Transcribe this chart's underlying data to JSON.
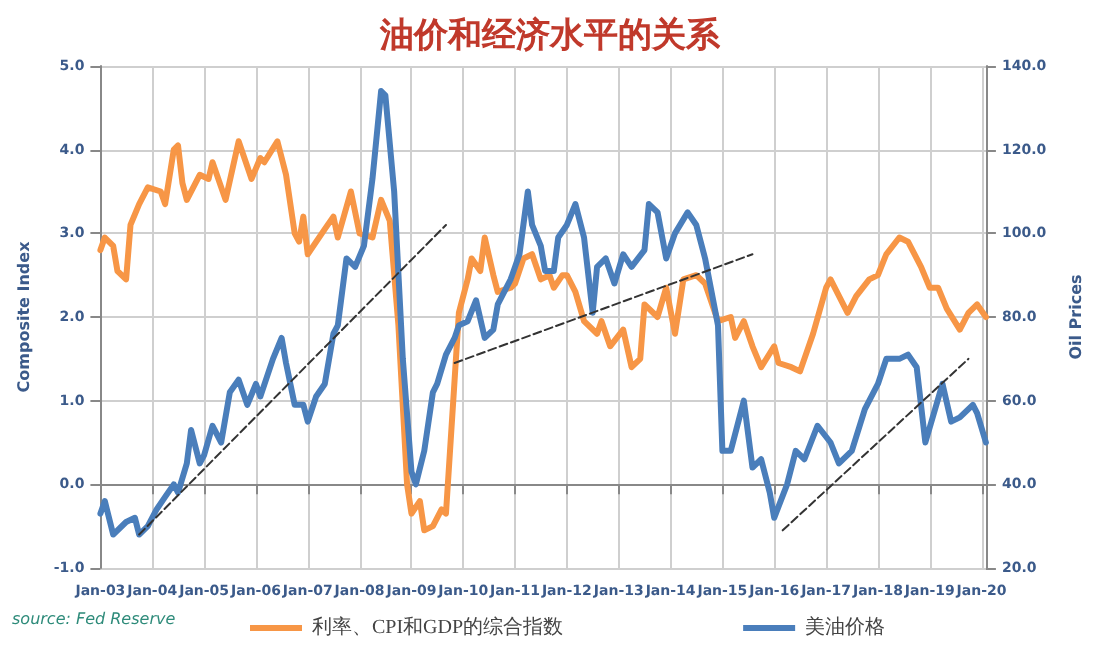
{
  "chart_data": {
    "type": "line",
    "title": "油价和经济水平的关系",
    "ylabel": "Composite Index",
    "y2label": "Oil Prices",
    "annotations": [
      "source: Fed Reserve"
    ],
    "xlim": [
      "2003-01",
      "2020-02"
    ],
    "xticks": [
      {
        "value": "2003-01",
        "label": "Jan-03"
      },
      {
        "value": "2004-01",
        "label": "Jan-04"
      },
      {
        "value": "2005-01",
        "label": "Jan-05"
      },
      {
        "value": "2006-01",
        "label": "Jan-06"
      },
      {
        "value": "2007-01",
        "label": "Jan-07"
      },
      {
        "value": "2008-01",
        "label": "Jan-08"
      },
      {
        "value": "2009-01",
        "label": "Jan-09"
      },
      {
        "value": "2010-01",
        "label": "Jan-10"
      },
      {
        "value": "2011-01",
        "label": "Jan-11"
      },
      {
        "value": "2012-01",
        "label": "Jan-12"
      },
      {
        "value": "2013-01",
        "label": "Jan-13"
      },
      {
        "value": "2014-01",
        "label": "Jan-14"
      },
      {
        "value": "2015-01",
        "label": "Jan-15"
      },
      {
        "value": "2016-01",
        "label": "Jan-16"
      },
      {
        "value": "2017-01",
        "label": "Jan-17"
      },
      {
        "value": "2018-01",
        "label": "Jan-18"
      },
      {
        "value": "2019-01",
        "label": "Jan-19"
      },
      {
        "value": "2020-01",
        "label": "Jan-20"
      }
    ],
    "ylim": [
      -1,
      5
    ],
    "yticks": [
      {
        "value": -1,
        "label": "-1.0"
      },
      {
        "value": 0,
        "label": "0.0"
      },
      {
        "value": 1,
        "label": "1.0"
      },
      {
        "value": 2,
        "label": "2.0"
      },
      {
        "value": 3,
        "label": "3.0"
      },
      {
        "value": 4,
        "label": "4.0"
      },
      {
        "value": 5,
        "label": "5.0"
      }
    ],
    "y2lim": [
      20,
      140
    ],
    "y2ticks": [
      {
        "value": 20,
        "label": "20.0"
      },
      {
        "value": 40,
        "label": "40.0"
      },
      {
        "value": 60,
        "label": "60.0"
      },
      {
        "value": 80,
        "label": "80.0"
      },
      {
        "value": 100,
        "label": "100.0"
      },
      {
        "value": 120,
        "label": "120.0"
      },
      {
        "value": 140,
        "label": "140.0"
      }
    ],
    "grid": true,
    "legend": "bottom",
    "marker": "none",
    "line_style": "solid",
    "series": [
      {
        "name": "利率、CPI和GDP的综合指数",
        "color": "#f79646",
        "x": [
          "2003-01",
          "2003-02",
          "2003-04",
          "2003-05",
          "2003-07",
          "2003-08",
          "2003-10",
          "2003-12",
          "2004-03",
          "2004-04",
          "2004-06",
          "2004-07",
          "2004-08",
          "2004-09",
          "2004-12",
          "2005-02",
          "2005-03",
          "2005-06",
          "2005-09",
          "2005-11",
          "2005-12",
          "2006-02",
          "2006-03",
          "2006-06",
          "2006-08",
          "2006-10",
          "2006-11",
          "2006-12",
          "2007-01",
          "2007-05",
          "2007-07",
          "2007-08",
          "2007-11",
          "2008-01",
          "2008-04",
          "2008-06",
          "2008-08",
          "2008-10",
          "2008-12",
          "2009-01",
          "2009-03",
          "2009-04",
          "2009-06",
          "2009-08",
          "2009-09",
          "2009-11",
          "2009-12",
          "2010-02",
          "2010-03",
          "2010-05",
          "2010-06",
          "2010-08",
          "2010-09",
          "2010-12",
          "2011-01",
          "2011-03",
          "2011-05",
          "2011-07",
          "2011-09",
          "2011-10",
          "2011-12",
          "2012-01",
          "2012-03",
          "2012-05",
          "2012-08",
          "2012-09",
          "2012-11",
          "2013-02",
          "2013-04",
          "2013-06",
          "2013-07",
          "2013-10",
          "2013-12",
          "2014-02",
          "2014-04",
          "2014-07",
          "2014-09",
          "2014-12",
          "2015-03",
          "2015-04",
          "2015-06",
          "2015-08",
          "2015-10",
          "2016-01",
          "2016-02",
          "2016-05",
          "2016-07",
          "2016-10",
          "2017-01",
          "2017-02",
          "2017-06",
          "2017-08",
          "2017-11",
          "2018-01",
          "2018-03",
          "2018-06",
          "2018-08",
          "2018-11",
          "2019-01",
          "2019-03",
          "2019-05",
          "2019-08",
          "2019-10",
          "2019-12",
          "2020-02"
        ],
        "values": [
          2.8,
          2.95,
          2.85,
          2.55,
          2.45,
          3.1,
          3.35,
          3.55,
          3.5,
          3.35,
          4.0,
          4.05,
          3.6,
          3.4,
          3.7,
          3.65,
          3.85,
          3.4,
          4.1,
          3.8,
          3.65,
          3.9,
          3.85,
          4.1,
          3.7,
          3.0,
          2.9,
          3.2,
          2.75,
          3.05,
          3.2,
          2.95,
          3.5,
          3.0,
          2.95,
          3.4,
          3.15,
          1.9,
          0.0,
          -0.35,
          -0.2,
          -0.55,
          -0.5,
          -0.3,
          -0.35,
          1.25,
          2.05,
          2.45,
          2.7,
          2.55,
          2.95,
          2.5,
          2.3,
          2.35,
          2.4,
          2.7,
          2.75,
          2.45,
          2.5,
          2.35,
          2.5,
          2.5,
          2.3,
          1.95,
          1.8,
          1.95,
          1.65,
          1.85,
          1.4,
          1.5,
          2.15,
          2.0,
          2.35,
          1.8,
          2.45,
          2.5,
          2.4,
          1.95,
          2.0,
          1.75,
          1.95,
          1.65,
          1.4,
          1.65,
          1.45,
          1.4,
          1.35,
          1.8,
          2.35,
          2.45,
          2.05,
          2.25,
          2.45,
          2.5,
          2.75,
          2.95,
          2.9,
          2.6,
          2.35,
          2.35,
          2.1,
          1.85,
          2.05,
          2.15,
          2.0
        ]
      },
      {
        "name": "美油价格",
        "color": "#4a7ebb",
        "axis": "y2",
        "x": [
          "2003-01",
          "2003-02",
          "2003-04",
          "2003-07",
          "2003-09",
          "2003-10",
          "2003-12",
          "2004-02",
          "2004-04",
          "2004-06",
          "2004-07",
          "2004-09",
          "2004-10",
          "2004-12",
          "2005-01",
          "2005-03",
          "2005-05",
          "2005-07",
          "2005-09",
          "2005-11",
          "2006-01",
          "2006-02",
          "2006-05",
          "2006-07",
          "2006-08",
          "2006-10",
          "2006-12",
          "2007-01",
          "2007-03",
          "2007-05",
          "2007-07",
          "2007-08",
          "2007-10",
          "2007-12",
          "2008-02",
          "2008-04",
          "2008-06",
          "2008-07",
          "2008-09",
          "2008-11",
          "2009-01",
          "2009-02",
          "2009-04",
          "2009-06",
          "2009-07",
          "2009-09",
          "2009-11",
          "2009-12",
          "2010-02",
          "2010-04",
          "2010-06",
          "2010-08",
          "2010-09",
          "2010-12",
          "2011-02",
          "2011-04",
          "2011-05",
          "2011-07",
          "2011-08",
          "2011-10",
          "2011-11",
          "2012-01",
          "2012-03",
          "2012-05",
          "2012-07",
          "2012-08",
          "2012-10",
          "2012-12",
          "2013-02",
          "2013-04",
          "2013-07",
          "2013-08",
          "2013-10",
          "2013-12",
          "2014-02",
          "2014-05",
          "2014-07",
          "2014-09",
          "2014-12",
          "2015-01",
          "2015-03",
          "2015-06",
          "2015-08",
          "2015-10",
          "2015-12",
          "2016-01",
          "2016-04",
          "2016-06",
          "2016-08",
          "2016-11",
          "2017-02",
          "2017-04",
          "2017-07",
          "2017-10",
          "2018-01",
          "2018-03",
          "2018-06",
          "2018-08",
          "2018-10",
          "2018-12",
          "2019-04",
          "2019-06",
          "2019-08",
          "2019-11",
          "2019-12",
          "2020-02"
        ],
        "values": [
          33,
          36,
          28,
          31,
          32,
          28,
          30,
          34,
          37,
          40,
          38,
          45,
          53,
          45,
          47,
          54,
          50,
          62,
          65,
          59,
          64,
          61,
          70,
          75,
          69,
          59,
          59,
          55,
          61,
          64,
          76,
          78,
          94,
          92,
          97,
          113,
          134,
          133,
          110,
          70,
          43,
          40,
          48,
          62,
          64,
          71,
          75,
          78,
          79,
          84,
          75,
          77,
          83,
          89,
          95,
          110,
          102,
          97,
          91,
          91,
          99,
          102,
          107,
          99,
          81,
          92,
          94,
          88,
          95,
          92,
          96,
          107,
          105,
          94,
          100,
          105,
          102,
          94,
          78,
          48,
          48,
          60,
          44,
          46,
          38,
          32,
          40,
          48,
          46,
          54,
          50,
          45,
          48,
          58,
          64,
          70,
          70,
          71,
          68,
          50,
          64,
          55,
          56,
          59,
          57,
          50
        ]
      },
      {
        "type": "line",
        "line_style": "dashed",
        "color": "#333333",
        "x": [
          "2003-10",
          "2009-09"
        ],
        "values": [
          -0.6,
          3.1
        ]
      },
      {
        "type": "line",
        "line_style": "dashed",
        "color": "#333333",
        "x": [
          "2009-11",
          "2015-08"
        ],
        "values": [
          1.45,
          2.75
        ]
      },
      {
        "type": "line",
        "line_style": "dashed",
        "color": "#333333",
        "axis": "y2",
        "x": [
          "2016-03",
          "2019-10"
        ],
        "values": [
          29,
          70
        ]
      }
    ]
  }
}
